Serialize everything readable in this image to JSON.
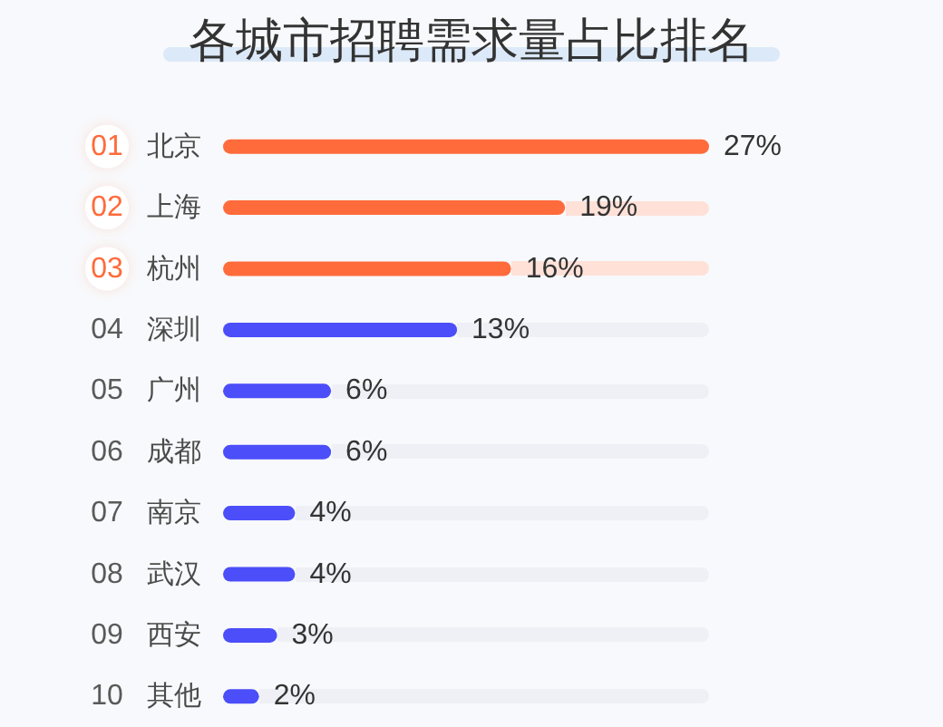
{
  "chart_data": {
    "type": "bar",
    "orientation": "horizontal",
    "title": "各城市招聘需求量占比排名",
    "categories": [
      "北京",
      "上海",
      "杭州",
      "深圳",
      "广州",
      "成都",
      "南京",
      "武汉",
      "西安",
      "其他"
    ],
    "values": [
      27,
      19,
      16,
      13,
      6,
      6,
      4,
      4,
      3,
      2
    ],
    "value_labels": [
      "27%",
      "19%",
      "16%",
      "13%",
      "6%",
      "6%",
      "4%",
      "4%",
      "3%",
      "2%"
    ],
    "colors": [
      "#ff6b3b",
      "#ff6b3b",
      "#ff6b3b",
      "#4b4ef9",
      "#4b4ef9",
      "#4b4ef9",
      "#4b4ef9",
      "#4b4ef9",
      "#4b4ef9",
      "#4b4ef9"
    ],
    "annotations": [
      "01",
      "02",
      "03",
      "04",
      "05",
      "06",
      "07",
      "08",
      "09",
      "10"
    ],
    "tick_labels": "y"
  }
}
